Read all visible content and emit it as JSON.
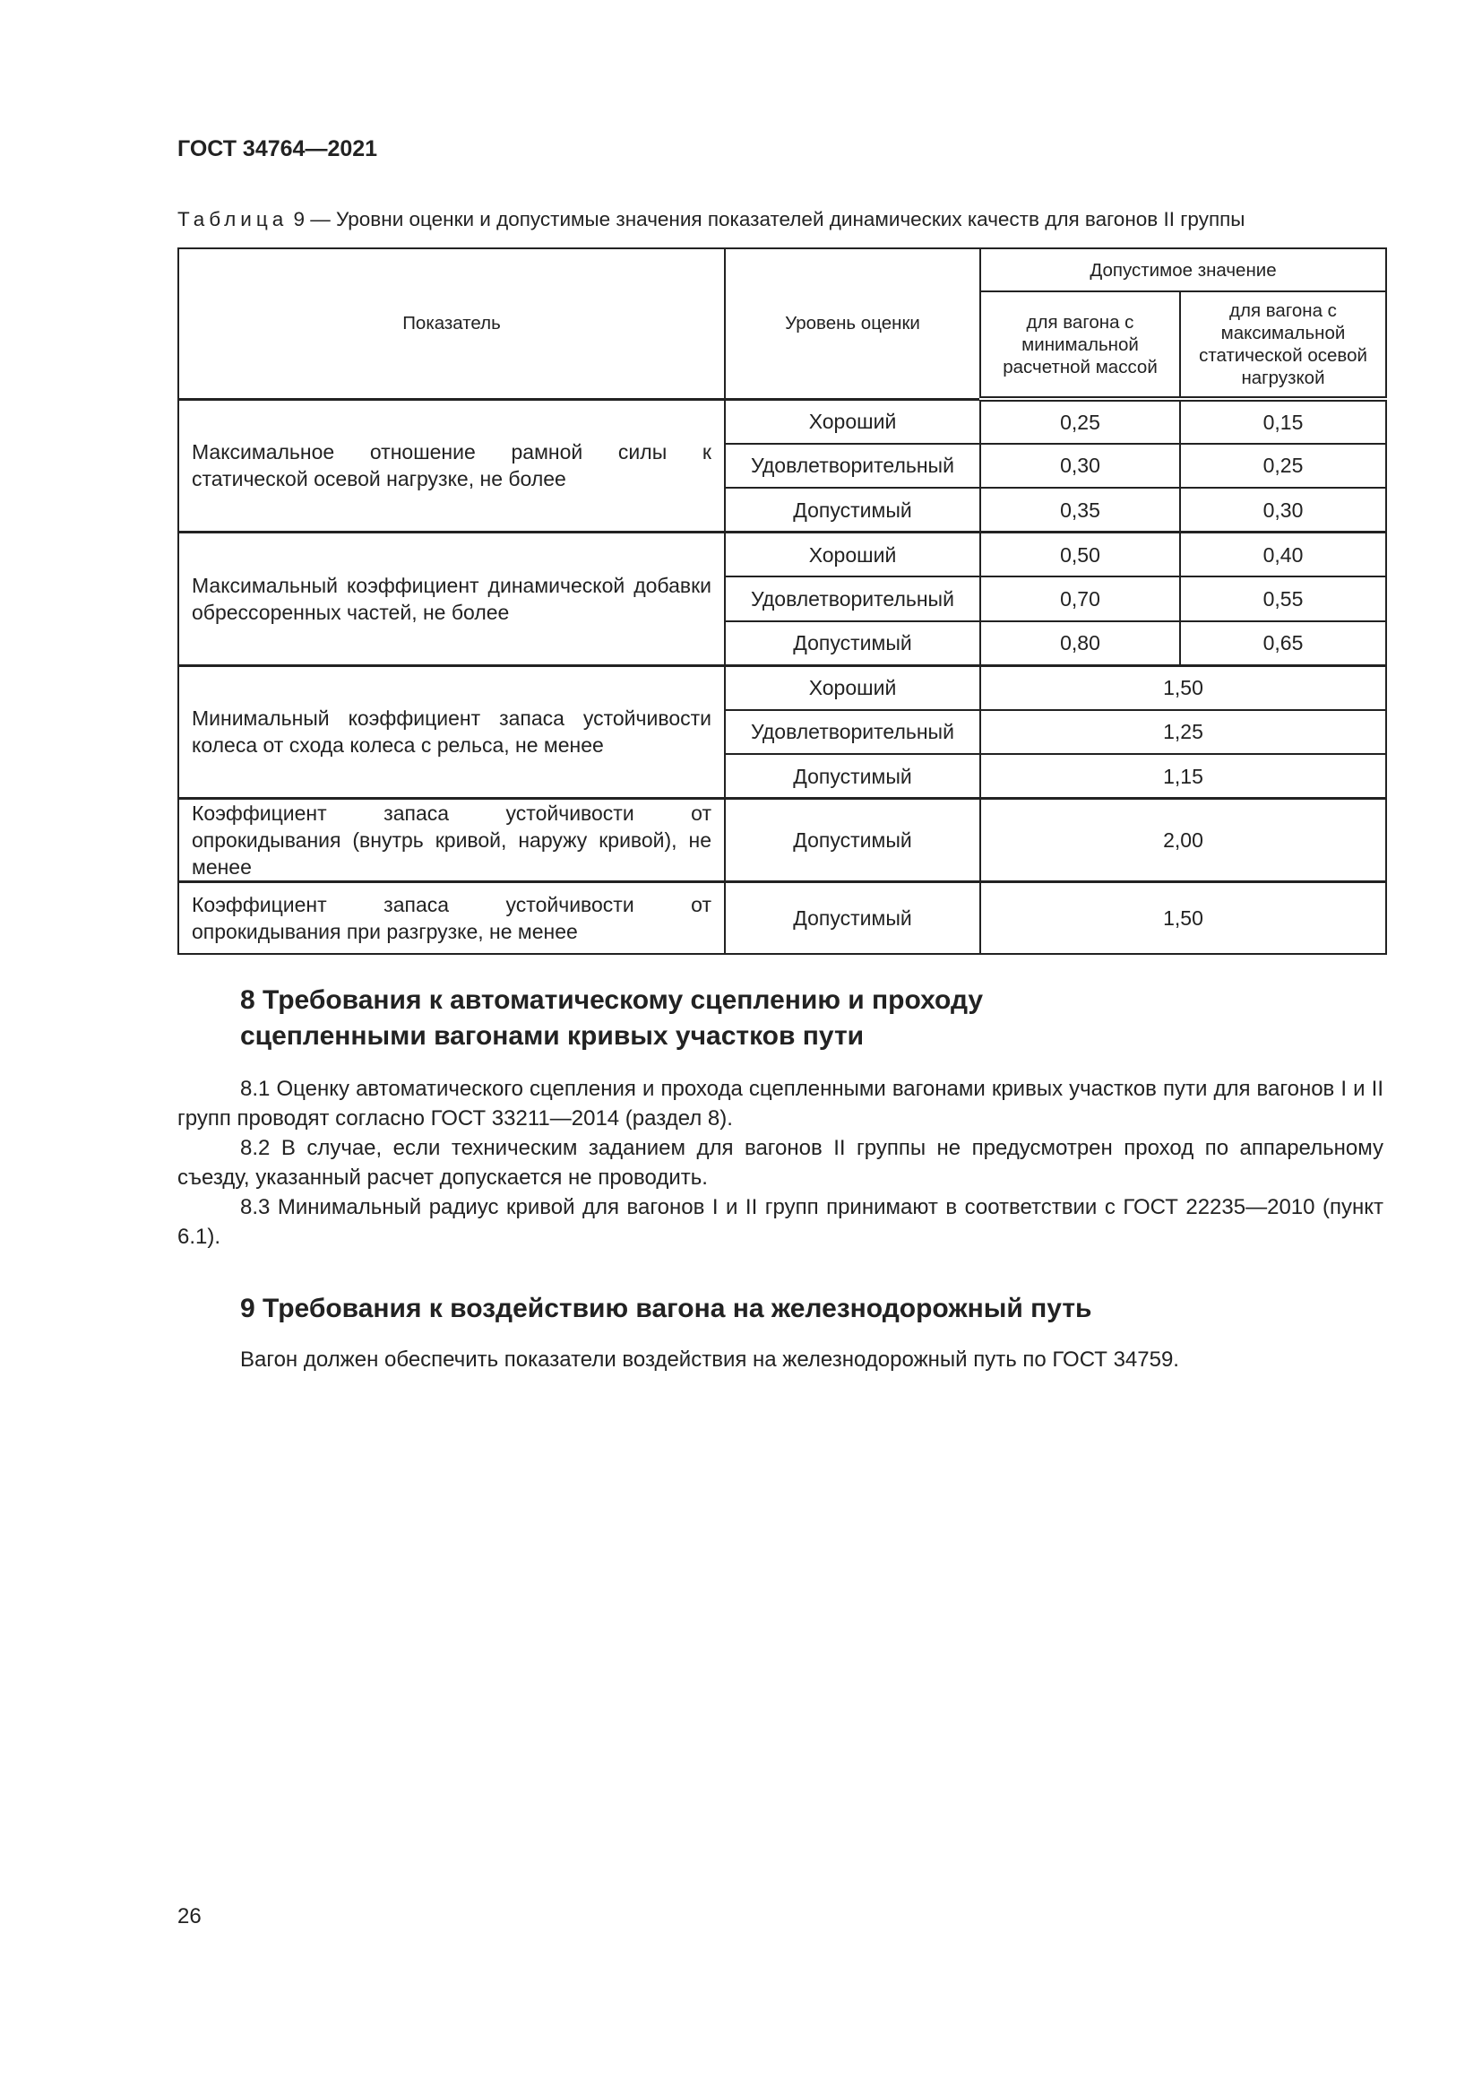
{
  "header": {
    "doc_code": "ГОСТ 34764—2021"
  },
  "table": {
    "caption_label": "Таблица",
    "caption_text": " 9 — Уровни оценки и допустимые значения показателей динамических качеств для вагонов II группы",
    "headers": {
      "indicator": "Показатель",
      "level": "Уровень оценки",
      "allowed": "Допустимое значение",
      "min_mass": "для вагона с минимальной расчетной массой",
      "max_load": "для вагона с максимальной статической осевой нагрузкой"
    },
    "groups": [
      {
        "indicator": "Максимальное отношение рамной силы к статической осевой нагрузке, не более",
        "rows": [
          {
            "level": "Хороший",
            "v1": "0,25",
            "v2": "0,15"
          },
          {
            "level": "Удовлетворительный",
            "v1": "0,30",
            "v2": "0,25"
          },
          {
            "level": "Допустимый",
            "v1": "0,35",
            "v2": "0,30"
          }
        ]
      },
      {
        "indicator": "Максимальный коэффициент динамической добавки обрессоренных частей, не более",
        "rows": [
          {
            "level": "Хороший",
            "v1": "0,50",
            "v2": "0,40"
          },
          {
            "level": "Удовлетворительный",
            "v1": "0,70",
            "v2": "0,55"
          },
          {
            "level": "Допустимый",
            "v1": "0,80",
            "v2": "0,65"
          }
        ]
      },
      {
        "indicator": "Минимальный коэффициент запаса устойчивости колеса от схода колеса с рельса, не менее",
        "rows": [
          {
            "level": "Хороший",
            "v": "1,50"
          },
          {
            "level": "Удовлетворительный",
            "v": "1,25"
          },
          {
            "level": "Допустимый",
            "v": "1,15"
          }
        ]
      },
      {
        "indicator": "Коэффициент запаса устойчивости от опрокидывания (внутрь кривой, наружу кривой), не менее",
        "rows": [
          {
            "level": "Допустимый",
            "v": "2,00"
          }
        ]
      },
      {
        "indicator": "Коэффициент запаса устойчивости от опрокидывания при разгрузке, не менее",
        "rows": [
          {
            "level": "Допустимый",
            "v": "1,50"
          }
        ]
      }
    ]
  },
  "section8": {
    "heading_line1": "8 Требования к автоматическому сцеплению и проходу",
    "heading_line2": "сцепленными вагонами кривых участков пути",
    "paragraphs": [
      "8.1 Оценку автоматического сцепления и прохода сцепленными вагонами кривых участков пути для вагонов I и II групп проводят согласно ГОСТ 33211—2014 (раздел 8).",
      "8.2 В случае, если техническим заданием для вагонов II группы не предусмотрен проход по аппарельному съезду, указанный расчет допускается не проводить.",
      "8.3 Минимальный радиус кривой для вагонов I и II групп принимают в соответствии с ГОСТ 22235—2010 (пункт 6.1)."
    ]
  },
  "section9": {
    "heading": "9 Требования к воздействию вагона на железнодорожный путь",
    "paragraph": "Вагон должен обеспечить показатели воздействия на железнодорожный путь по ГОСТ 34759."
  },
  "footer": {
    "page_number": "26"
  }
}
